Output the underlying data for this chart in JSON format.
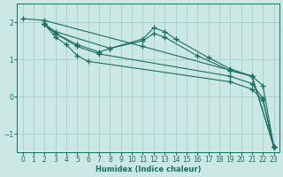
{
  "xlabel": "Humidex (Indice chaleur)",
  "ylabel": "",
  "background_color": "#cce8e4",
  "grid_color": "#aad4ce",
  "line_color": "#1a6e64",
  "xlim": [
    -0.5,
    23.5
  ],
  "ylim": [
    -1.5,
    2.5
  ],
  "yticks": [
    -1,
    0,
    1,
    2
  ],
  "xticks": [
    0,
    1,
    2,
    3,
    4,
    5,
    6,
    7,
    8,
    9,
    10,
    11,
    12,
    13,
    14,
    15,
    16,
    17,
    18,
    19,
    20,
    21,
    22,
    23
  ],
  "lines": [
    {
      "x": [
        0,
        2,
        11,
        21,
        23
      ],
      "y": [
        2.1,
        2.05,
        1.35,
        0.55,
        -1.35
      ]
    },
    {
      "x": [
        2,
        3,
        8,
        11,
        12,
        13,
        14,
        17,
        19,
        21,
        23
      ],
      "y": [
        1.95,
        1.75,
        1.3,
        1.55,
        1.85,
        1.75,
        1.55,
        1.05,
        0.75,
        0.55,
        -1.35
      ]
    },
    {
      "x": [
        2,
        3,
        5,
        7,
        8,
        11,
        12,
        13,
        16,
        19,
        21,
        22,
        23
      ],
      "y": [
        1.95,
        1.7,
        1.4,
        1.2,
        1.3,
        1.5,
        1.7,
        1.6,
        1.1,
        0.7,
        0.55,
        0.3,
        -1.35
      ]
    },
    {
      "x": [
        2,
        3,
        5,
        7,
        19,
        21,
        22,
        23
      ],
      "y": [
        1.95,
        1.7,
        1.35,
        1.15,
        0.55,
        0.35,
        -0.05,
        -1.35
      ]
    },
    {
      "x": [
        2,
        3,
        4,
        5,
        6,
        19,
        21,
        22,
        23
      ],
      "y": [
        1.95,
        1.6,
        1.4,
        1.1,
        0.95,
        0.4,
        0.2,
        -0.1,
        -1.35
      ]
    }
  ]
}
